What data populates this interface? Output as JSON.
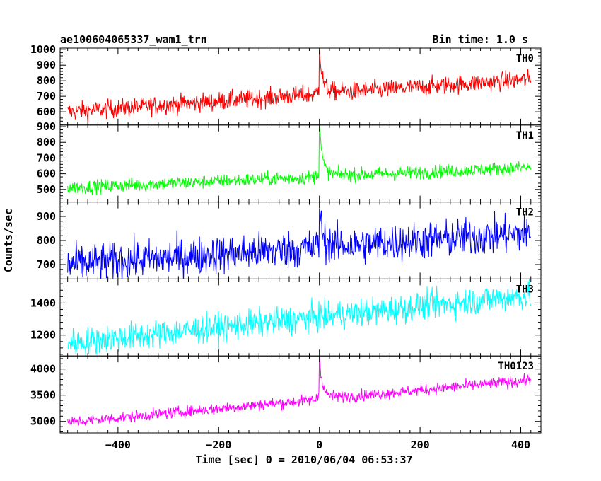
{
  "header": {
    "title": "ae100604065337_wam1_trn",
    "bin_time": "Bin time: 1.0 s"
  },
  "chart_data": {
    "type": "line",
    "xlabel": "Time [sec] 0 = 2010/06/04 06:53:37",
    "ylabel": "Counts/sec",
    "xlim": [
      -515,
      440
    ],
    "x_ticks": [
      -400,
      -200,
      0,
      200,
      400
    ],
    "x_tick_labels": [
      "−400",
      "−200",
      "0",
      "200",
      "400"
    ],
    "time_range": [
      -500,
      420
    ],
    "panels": [
      {
        "name": "TH0",
        "color": "#ff0000",
        "ylim": [
          515,
          1010
        ],
        "y_ticks": [
          600,
          700,
          800,
          900,
          1000
        ],
        "baseline": {
          "start": 600,
          "end": 810
        },
        "noise": 30,
        "peak": 1000
      },
      {
        "name": "TH1",
        "color": "#00ff00",
        "ylim": [
          420,
          910
        ],
        "y_ticks": [
          500,
          600,
          700,
          800,
          900
        ],
        "baseline": {
          "start": 510,
          "end": 640
        },
        "noise": 22,
        "peak": 905
      },
      {
        "name": "TH2",
        "color": "#0000ff",
        "ylim": [
          640,
          960
        ],
        "y_ticks": [
          700,
          800,
          900
        ],
        "baseline": {
          "start": 700,
          "end": 830
        },
        "noise": 40,
        "peak": 930
      },
      {
        "name": "TH3",
        "color": "#00ffff",
        "ylim": [
          1070,
          1550
        ],
        "y_ticks": [
          1200,
          1400
        ],
        "baseline": {
          "start": 1150,
          "end": 1450
        },
        "noise": 45,
        "peak": null
      },
      {
        "name": "TH0123",
        "color": "#ff00ff",
        "ylim": [
          2780,
          4250
        ],
        "y_ticks": [
          3000,
          3500,
          4000
        ],
        "baseline": {
          "start": 2980,
          "end": 3790
        },
        "noise": 55,
        "peak": 4230
      }
    ]
  }
}
